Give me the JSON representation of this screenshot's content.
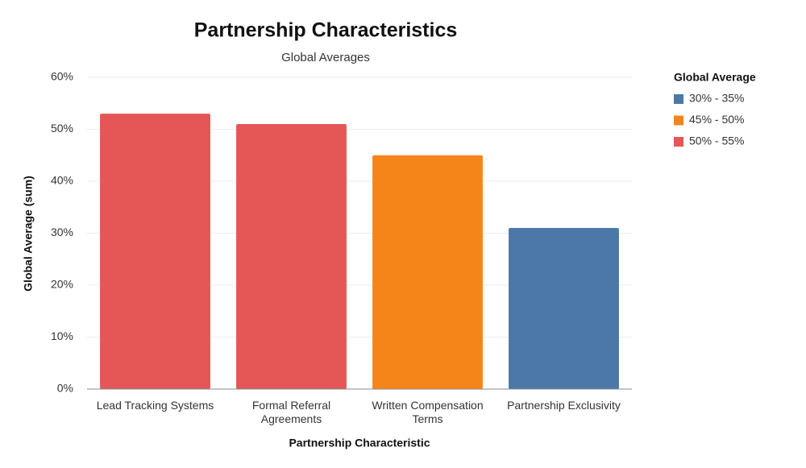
{
  "chart_data": {
    "type": "bar",
    "title": "Partnership Characteristics",
    "subtitle": "Global Averages",
    "x_label": "Partnership Characteristic",
    "y_label": "Global Average (sum)",
    "categories": [
      "Lead Tracking Systems",
      "Formal Referral Agreements",
      "Written Compensation Terms",
      "Partnership Exclusivity"
    ],
    "values": [
      53,
      51,
      45,
      31
    ],
    "colors": [
      "#e45756",
      "#e45756",
      "#f58518",
      "#4c78a8"
    ],
    "ylim": [
      0,
      60
    ],
    "yticks": [
      {
        "value": 0,
        "label": "0%"
      },
      {
        "value": 10,
        "label": "10%"
      },
      {
        "value": 20,
        "label": "20%"
      },
      {
        "value": 30,
        "label": "30%"
      },
      {
        "value": 40,
        "label": "40%"
      },
      {
        "value": 50,
        "label": "50%"
      },
      {
        "value": 60,
        "label": "60%"
      }
    ],
    "grid": true,
    "legend": {
      "title": "Global Average",
      "position": "right",
      "entries": [
        {
          "name": "30% - 35%",
          "color": "#4c78a8"
        },
        {
          "name": "45% - 50%",
          "color": "#f58518"
        },
        {
          "name": "50% - 55%",
          "color": "#e45756"
        }
      ]
    }
  }
}
